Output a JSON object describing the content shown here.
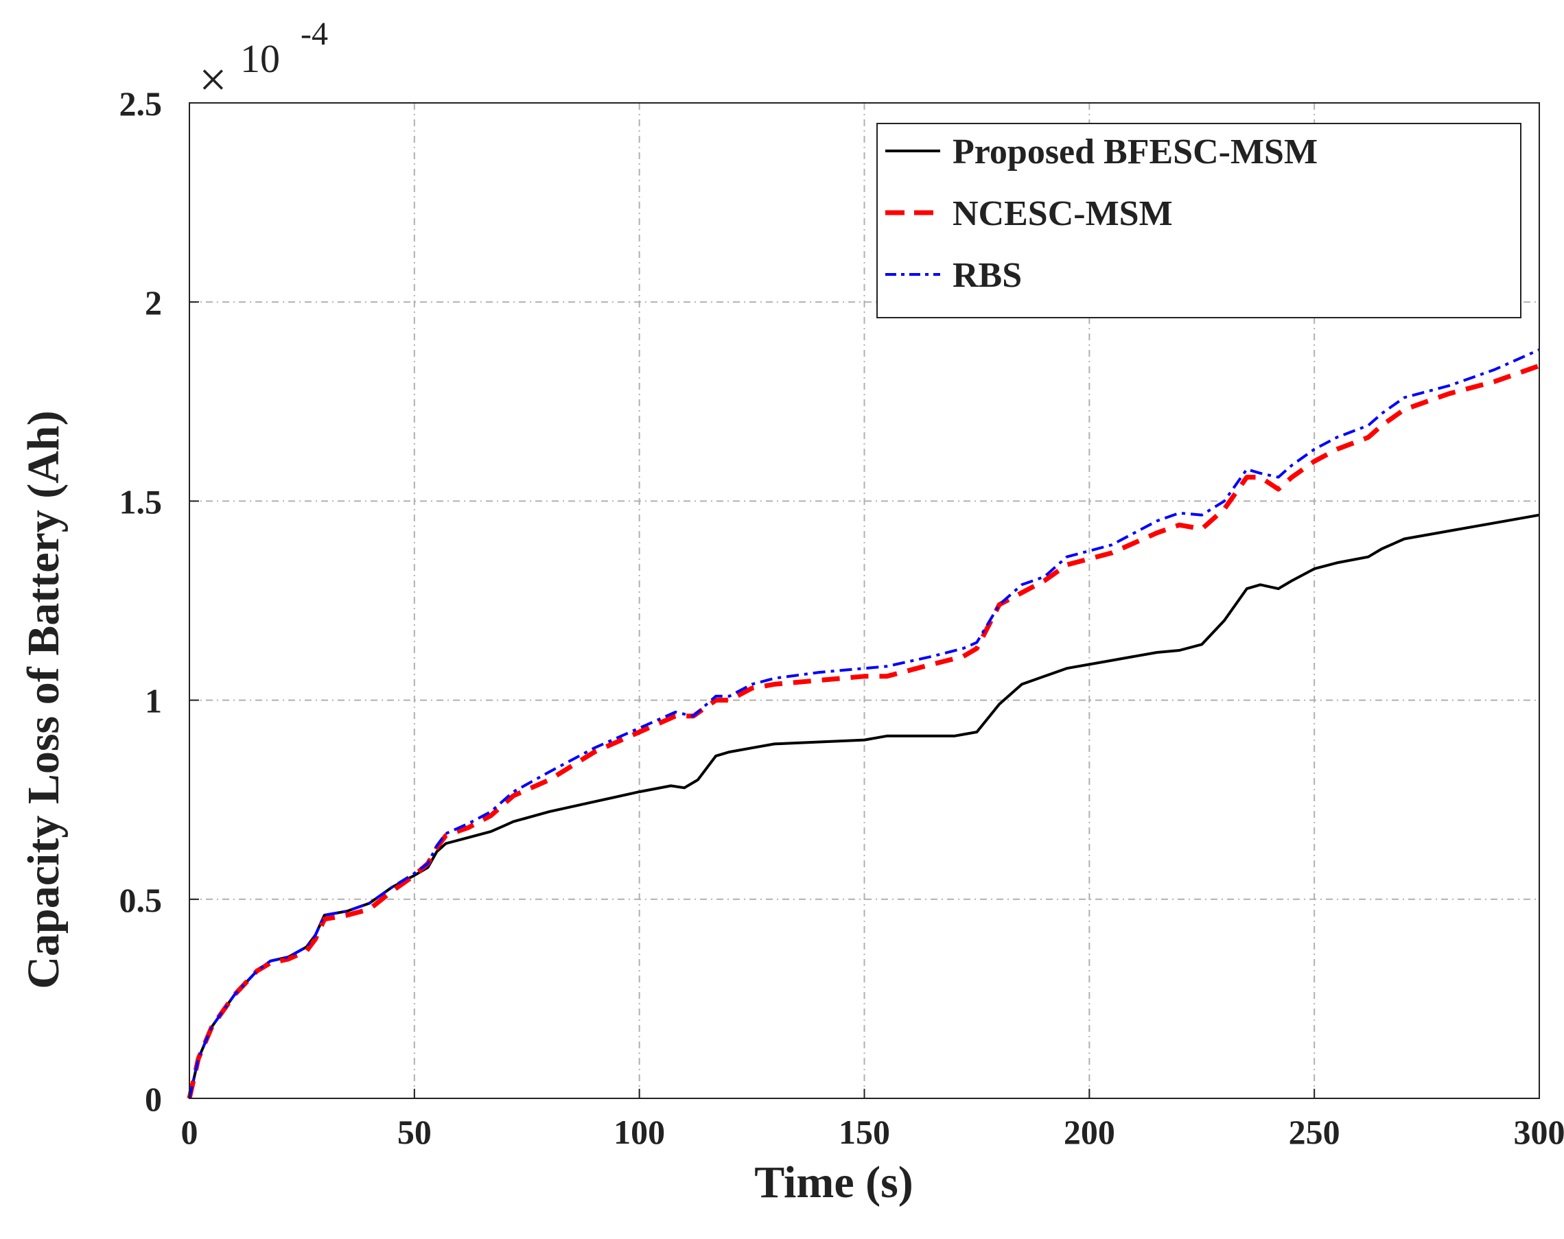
{
  "chart_data": {
    "type": "line",
    "title": "",
    "xlabel": "Time (s)",
    "ylabel": "Capacity Loss of Battery (Ah)",
    "xlim": [
      0,
      300
    ],
    "ylim": [
      0,
      2.5
    ],
    "y_scale_factor": "10",
    "y_scale_exponent": "-4",
    "x_ticks": [
      0,
      50,
      100,
      150,
      200,
      250,
      300
    ],
    "y_ticks": [
      0,
      0.5,
      1,
      1.5,
      2,
      2.5
    ],
    "x_tick_labels": [
      "0",
      "50",
      "100",
      "150",
      "200",
      "250",
      "300"
    ],
    "y_tick_labels": [
      "0",
      "0.5",
      "1",
      "1.5",
      "2",
      "2.5"
    ],
    "grid": true,
    "legend_position": "top-right",
    "series": [
      {
        "name": "Proposed BFESC-MSM",
        "color": "#000000",
        "style": "solid",
        "x": [
          0,
          2,
          5,
          10,
          15,
          18,
          22,
          26,
          28,
          30,
          35,
          40,
          45,
          50,
          53,
          55,
          57,
          62,
          67,
          70,
          72,
          80,
          90,
          100,
          107,
          110,
          113,
          117,
          120,
          125,
          130,
          140,
          150,
          155,
          165,
          170,
          175,
          180,
          185,
          190,
          195,
          205,
          215,
          220,
          225,
          230,
          235,
          238,
          242,
          245,
          250,
          255,
          262,
          265,
          270,
          280,
          290,
          300
        ],
        "y": [
          0,
          0.1,
          0.18,
          0.26,
          0.32,
          0.345,
          0.355,
          0.38,
          0.41,
          0.46,
          0.47,
          0.49,
          0.53,
          0.56,
          0.58,
          0.62,
          0.64,
          0.655,
          0.67,
          0.685,
          0.695,
          0.72,
          0.745,
          0.77,
          0.785,
          0.78,
          0.8,
          0.86,
          0.87,
          0.88,
          0.89,
          0.895,
          0.9,
          0.91,
          0.91,
          0.91,
          0.92,
          0.99,
          1.04,
          1.06,
          1.08,
          1.1,
          1.12,
          1.125,
          1.14,
          1.2,
          1.28,
          1.29,
          1.28,
          1.3,
          1.33,
          1.345,
          1.36,
          1.38,
          1.405,
          1.425,
          1.445,
          1.465
        ]
      },
      {
        "name": "NCESC-MSM",
        "color": "#ff0000",
        "style": "dashed",
        "x": [
          0,
          2,
          5,
          10,
          15,
          18,
          22,
          26,
          28,
          30,
          35,
          40,
          45,
          50,
          53,
          55,
          57,
          62,
          67,
          72,
          80,
          90,
          100,
          108,
          112,
          117,
          120,
          125,
          130,
          140,
          150,
          155,
          165,
          172,
          175,
          180,
          185,
          190,
          195,
          205,
          215,
          220,
          225,
          230,
          235,
          238,
          242,
          245,
          250,
          255,
          262,
          265,
          270,
          280,
          290,
          300
        ],
        "y": [
          0,
          0.1,
          0.18,
          0.26,
          0.32,
          0.34,
          0.35,
          0.37,
          0.4,
          0.45,
          0.46,
          0.475,
          0.52,
          0.56,
          0.59,
          0.63,
          0.66,
          0.68,
          0.71,
          0.76,
          0.8,
          0.87,
          0.92,
          0.96,
          0.96,
          1.0,
          1.0,
          1.03,
          1.04,
          1.05,
          1.06,
          1.06,
          1.09,
          1.11,
          1.13,
          1.24,
          1.27,
          1.3,
          1.34,
          1.37,
          1.42,
          1.44,
          1.43,
          1.48,
          1.56,
          1.56,
          1.53,
          1.56,
          1.6,
          1.63,
          1.66,
          1.69,
          1.73,
          1.77,
          1.8,
          1.84
        ]
      },
      {
        "name": "RBS",
        "color": "#0000ff",
        "style": "dashdot",
        "x": [
          0,
          2,
          5,
          10,
          15,
          18,
          22,
          26,
          28,
          30,
          35,
          40,
          45,
          50,
          53,
          55,
          57,
          62,
          67,
          72,
          80,
          90,
          100,
          108,
          112,
          117,
          120,
          125,
          130,
          140,
          150,
          155,
          165,
          172,
          175,
          180,
          185,
          190,
          195,
          205,
          215,
          220,
          225,
          230,
          235,
          238,
          242,
          245,
          250,
          255,
          262,
          265,
          270,
          280,
          290,
          300
        ],
        "y": [
          0,
          0.1,
          0.18,
          0.26,
          0.32,
          0.345,
          0.355,
          0.38,
          0.41,
          0.46,
          0.47,
          0.49,
          0.53,
          0.565,
          0.59,
          0.635,
          0.665,
          0.69,
          0.72,
          0.77,
          0.82,
          0.88,
          0.93,
          0.97,
          0.96,
          1.01,
          1.01,
          1.04,
          1.055,
          1.07,
          1.08,
          1.085,
          1.11,
          1.13,
          1.145,
          1.24,
          1.29,
          1.31,
          1.36,
          1.39,
          1.45,
          1.47,
          1.465,
          1.5,
          1.58,
          1.57,
          1.56,
          1.59,
          1.63,
          1.66,
          1.69,
          1.72,
          1.76,
          1.79,
          1.83,
          1.88
        ]
      }
    ]
  }
}
